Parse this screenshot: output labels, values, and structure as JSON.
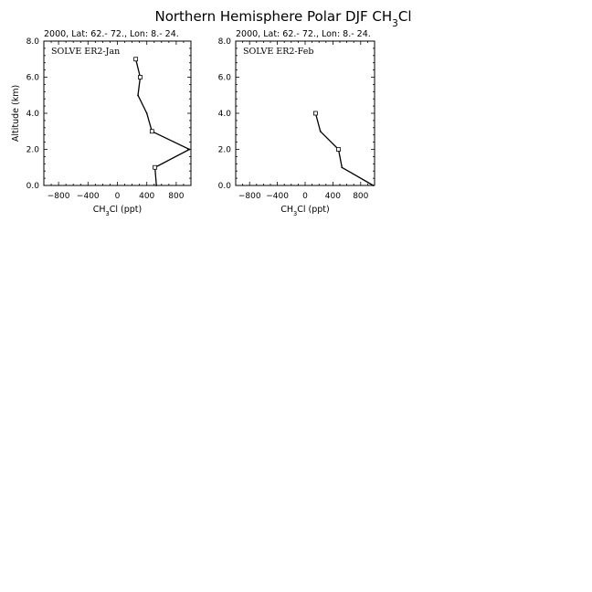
{
  "figure": {
    "title": "Northern Hemisphere Polar DJF CH3Cl"
  },
  "chart_data": [
    {
      "type": "line",
      "subtitle": "2000, Lat: 62.- 72., Lon: 8.- 24.",
      "panel_label": "SOLVE ER2-Jan",
      "xlabel": "CH3Cl (ppt)",
      "ylabel": "Altitude (km)",
      "xlim": [
        -1000,
        1000
      ],
      "ylim": [
        0,
        8
      ],
      "x_ticks": [
        -800,
        -400,
        0,
        400,
        800
      ],
      "y_ticks": [
        0,
        2,
        4,
        6,
        8
      ],
      "y_tick_labels": [
        "0.0",
        "2.0",
        "4.0",
        "6.0",
        "8.0"
      ],
      "series": [
        {
          "x": [
            530,
            510,
            980,
            470,
            400,
            280,
            310,
            250
          ],
          "y": [
            0,
            1,
            2,
            3,
            4,
            5,
            6,
            7
          ],
          "markers_at": [
            1,
            3,
            6,
            7
          ]
        }
      ]
    },
    {
      "type": "line",
      "subtitle": "2000, Lat: 62.- 72., Lon: 8.- 24.",
      "panel_label": "SOLVE ER2-Feb",
      "xlabel": "CH3Cl (ppt)",
      "ylabel": "",
      "xlim": [
        -1000,
        1000
      ],
      "ylim": [
        0,
        8
      ],
      "x_ticks": [
        -800,
        -400,
        0,
        400,
        800
      ],
      "y_ticks": [
        0,
        2,
        4,
        6,
        8
      ],
      "y_tick_labels": [
        "0.0",
        "2.0",
        "4.0",
        "6.0",
        "8.0"
      ],
      "series": [
        {
          "x": [
            980,
            530,
            480,
            220,
            150
          ],
          "y": [
            0,
            1,
            2,
            3,
            4
          ],
          "markers_at": [
            2,
            4
          ]
        }
      ]
    }
  ]
}
